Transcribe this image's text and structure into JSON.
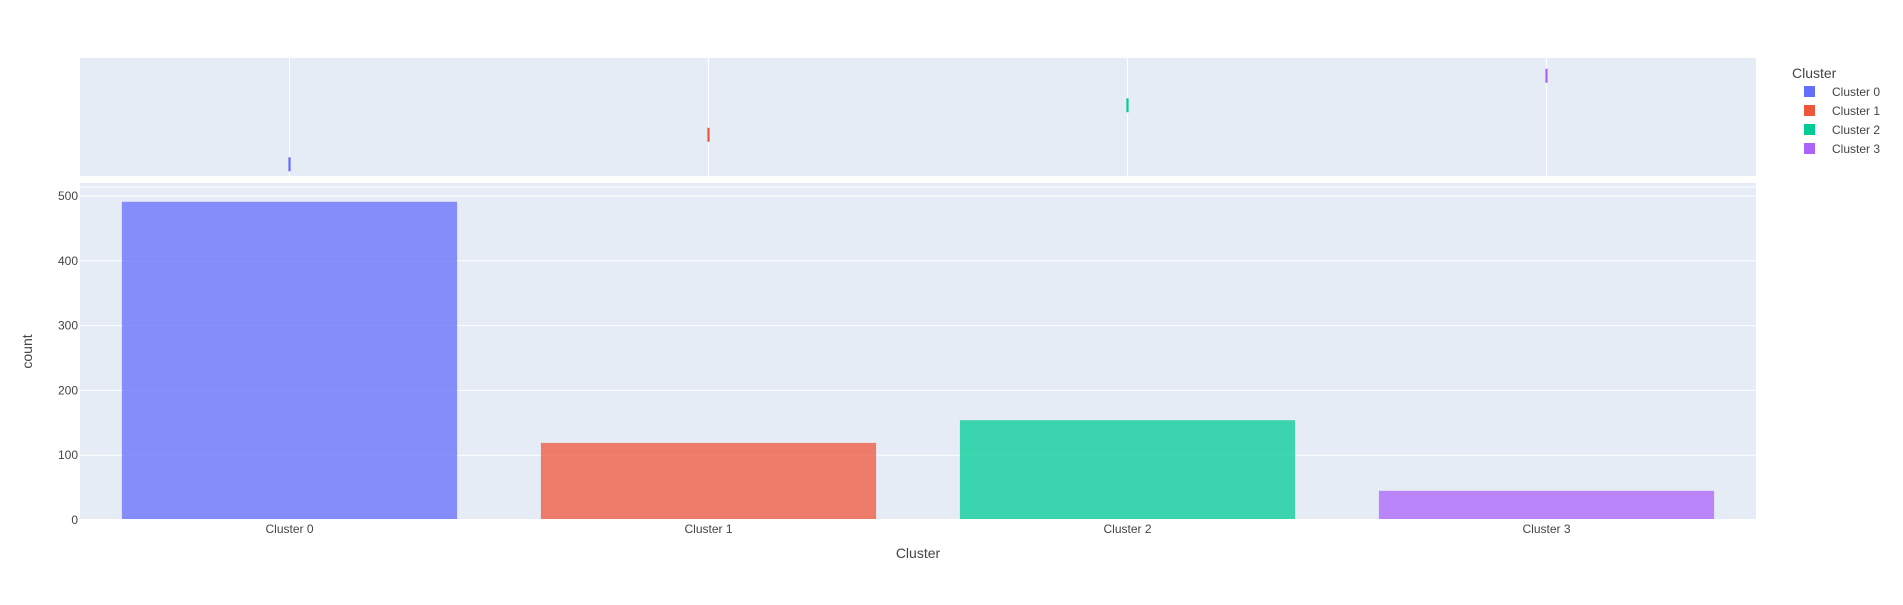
{
  "chart_data": {
    "type": "bar",
    "categories": [
      "Cluster 0",
      "Cluster 1",
      "Cluster 2",
      "Cluster 3"
    ],
    "values": [
      491,
      119,
      154,
      45
    ],
    "colors": [
      "#636efa",
      "#ef553b",
      "#00cc96",
      "#ab63fa"
    ],
    "bar_opacity": 0.75,
    "xlabel": "Cluster",
    "ylabel": "count",
    "ylim": [
      0,
      520
    ],
    "yticks": [
      0,
      100,
      200,
      300,
      400,
      500
    ],
    "grid": true,
    "marginal": {
      "type": "rug",
      "position": "top",
      "markers": [
        {
          "category": "Cluster 0",
          "level": 0
        },
        {
          "category": "Cluster 1",
          "level": 1
        },
        {
          "category": "Cluster 2",
          "level": 2
        },
        {
          "category": "Cluster 3",
          "level": 3
        }
      ]
    },
    "legend": {
      "title": "Cluster",
      "placement": "top-right",
      "items": [
        {
          "label": "Cluster 0",
          "color": "#636efa"
        },
        {
          "label": "Cluster 1",
          "color": "#ef553b"
        },
        {
          "label": "Cluster 2",
          "color": "#00cc96"
        },
        {
          "label": "Cluster 3",
          "color": "#ab63fa"
        }
      ]
    },
    "plot_background": "#e5ecf6",
    "gridline_color": "#ffffff"
  }
}
